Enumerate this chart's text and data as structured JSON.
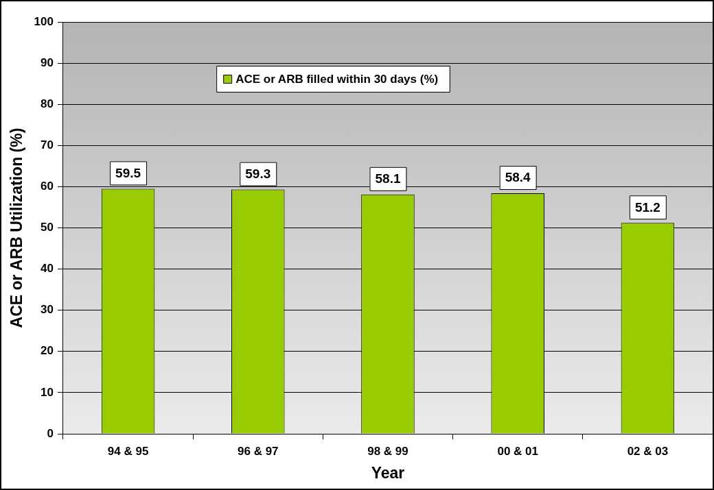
{
  "chart_data": {
    "type": "bar",
    "xlabel": "Year",
    "ylabel": "ACE or ARB Utilization (%)",
    "categories": [
      "94 & 95",
      "96 & 97",
      "98 & 99",
      "00 & 01",
      "02 & 03"
    ],
    "series": [
      {
        "name": "ACE or ARB filled within 30 days (%)",
        "color": "#99cc00",
        "values": [
          59.5,
          59.3,
          58.1,
          58.4,
          51.2
        ]
      }
    ],
    "ylim": [
      0,
      100
    ],
    "yticks": [
      0,
      10,
      20,
      30,
      40,
      50,
      60,
      70,
      80,
      90,
      100
    ],
    "grid": "y",
    "legend": "top",
    "data_labels": true
  }
}
